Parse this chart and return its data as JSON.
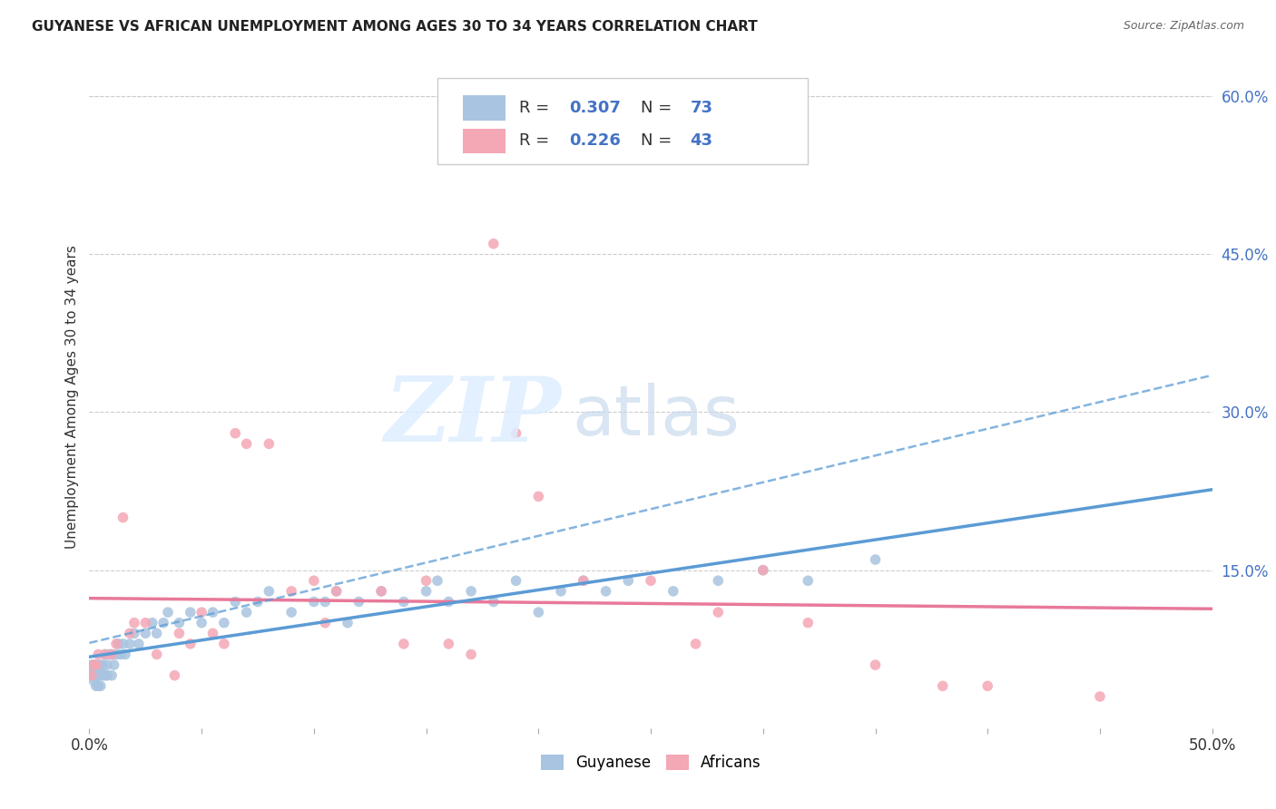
{
  "title": "GUYANESE VS AFRICAN UNEMPLOYMENT AMONG AGES 30 TO 34 YEARS CORRELATION CHART",
  "source": "Source: ZipAtlas.com",
  "ylabel": "Unemployment Among Ages 30 to 34 years",
  "xlim": [
    0.0,
    0.5
  ],
  "ylim": [
    0.0,
    0.63
  ],
  "xticks": [
    0.0,
    0.05,
    0.1,
    0.15,
    0.2,
    0.25,
    0.3,
    0.35,
    0.4,
    0.45,
    0.5
  ],
  "xtick_labels": [
    "0.0%",
    "",
    "",
    "",
    "",
    "",
    "",
    "",
    "",
    "",
    "50.0%"
  ],
  "yticks_right": [
    0.15,
    0.3,
    0.45,
    0.6
  ],
  "ytick_labels_right": [
    "15.0%",
    "30.0%",
    "45.0%",
    "60.0%"
  ],
  "guyanese_color": "#a8c4e0",
  "africans_color": "#f4a7b5",
  "guyanese_R": 0.307,
  "guyanese_N": 73,
  "africans_R": 0.226,
  "africans_N": 43,
  "background_color": "#ffffff",
  "grid_color": "#cccccc",
  "reg_color_guyanese": "#5b9bd5",
  "reg_color_africans": "#e8799a",
  "guyanese_x": [
    0.001,
    0.001,
    0.001,
    0.002,
    0.002,
    0.002,
    0.002,
    0.003,
    0.003,
    0.003,
    0.004,
    0.004,
    0.004,
    0.005,
    0.005,
    0.005,
    0.005,
    0.006,
    0.006,
    0.007,
    0.007,
    0.008,
    0.008,
    0.009,
    0.01,
    0.01,
    0.011,
    0.012,
    0.013,
    0.014,
    0.015,
    0.016,
    0.018,
    0.02,
    0.022,
    0.025,
    0.028,
    0.03,
    0.033,
    0.035,
    0.04,
    0.045,
    0.05,
    0.055,
    0.06,
    0.065,
    0.07,
    0.075,
    0.08,
    0.09,
    0.1,
    0.105,
    0.11,
    0.115,
    0.12,
    0.13,
    0.14,
    0.15,
    0.155,
    0.16,
    0.17,
    0.18,
    0.19,
    0.2,
    0.21,
    0.22,
    0.23,
    0.24,
    0.26,
    0.28,
    0.3,
    0.32,
    0.35
  ],
  "guyanese_y": [
    0.05,
    0.055,
    0.06,
    0.045,
    0.05,
    0.055,
    0.06,
    0.04,
    0.05,
    0.06,
    0.04,
    0.05,
    0.06,
    0.04,
    0.05,
    0.055,
    0.06,
    0.05,
    0.06,
    0.05,
    0.07,
    0.05,
    0.06,
    0.07,
    0.05,
    0.07,
    0.06,
    0.07,
    0.08,
    0.07,
    0.08,
    0.07,
    0.08,
    0.09,
    0.08,
    0.09,
    0.1,
    0.09,
    0.1,
    0.11,
    0.1,
    0.11,
    0.1,
    0.11,
    0.1,
    0.12,
    0.11,
    0.12,
    0.13,
    0.11,
    0.12,
    0.12,
    0.13,
    0.1,
    0.12,
    0.13,
    0.12,
    0.13,
    0.14,
    0.12,
    0.13,
    0.12,
    0.14,
    0.11,
    0.13,
    0.14,
    0.13,
    0.14,
    0.13,
    0.14,
    0.15,
    0.14,
    0.16
  ],
  "africans_x": [
    0.001,
    0.002,
    0.003,
    0.004,
    0.007,
    0.01,
    0.012,
    0.015,
    0.018,
    0.02,
    0.025,
    0.03,
    0.038,
    0.04,
    0.045,
    0.05,
    0.055,
    0.06,
    0.065,
    0.07,
    0.08,
    0.09,
    0.1,
    0.105,
    0.11,
    0.13,
    0.14,
    0.15,
    0.16,
    0.17,
    0.18,
    0.19,
    0.2,
    0.22,
    0.25,
    0.27,
    0.28,
    0.3,
    0.32,
    0.35,
    0.38,
    0.4,
    0.45
  ],
  "africans_y": [
    0.05,
    0.06,
    0.06,
    0.07,
    0.07,
    0.07,
    0.08,
    0.2,
    0.09,
    0.1,
    0.1,
    0.07,
    0.05,
    0.09,
    0.08,
    0.11,
    0.09,
    0.08,
    0.28,
    0.27,
    0.27,
    0.13,
    0.14,
    0.1,
    0.13,
    0.13,
    0.08,
    0.14,
    0.08,
    0.07,
    0.46,
    0.28,
    0.22,
    0.14,
    0.14,
    0.08,
    0.11,
    0.15,
    0.1,
    0.06,
    0.04,
    0.04,
    0.03
  ]
}
